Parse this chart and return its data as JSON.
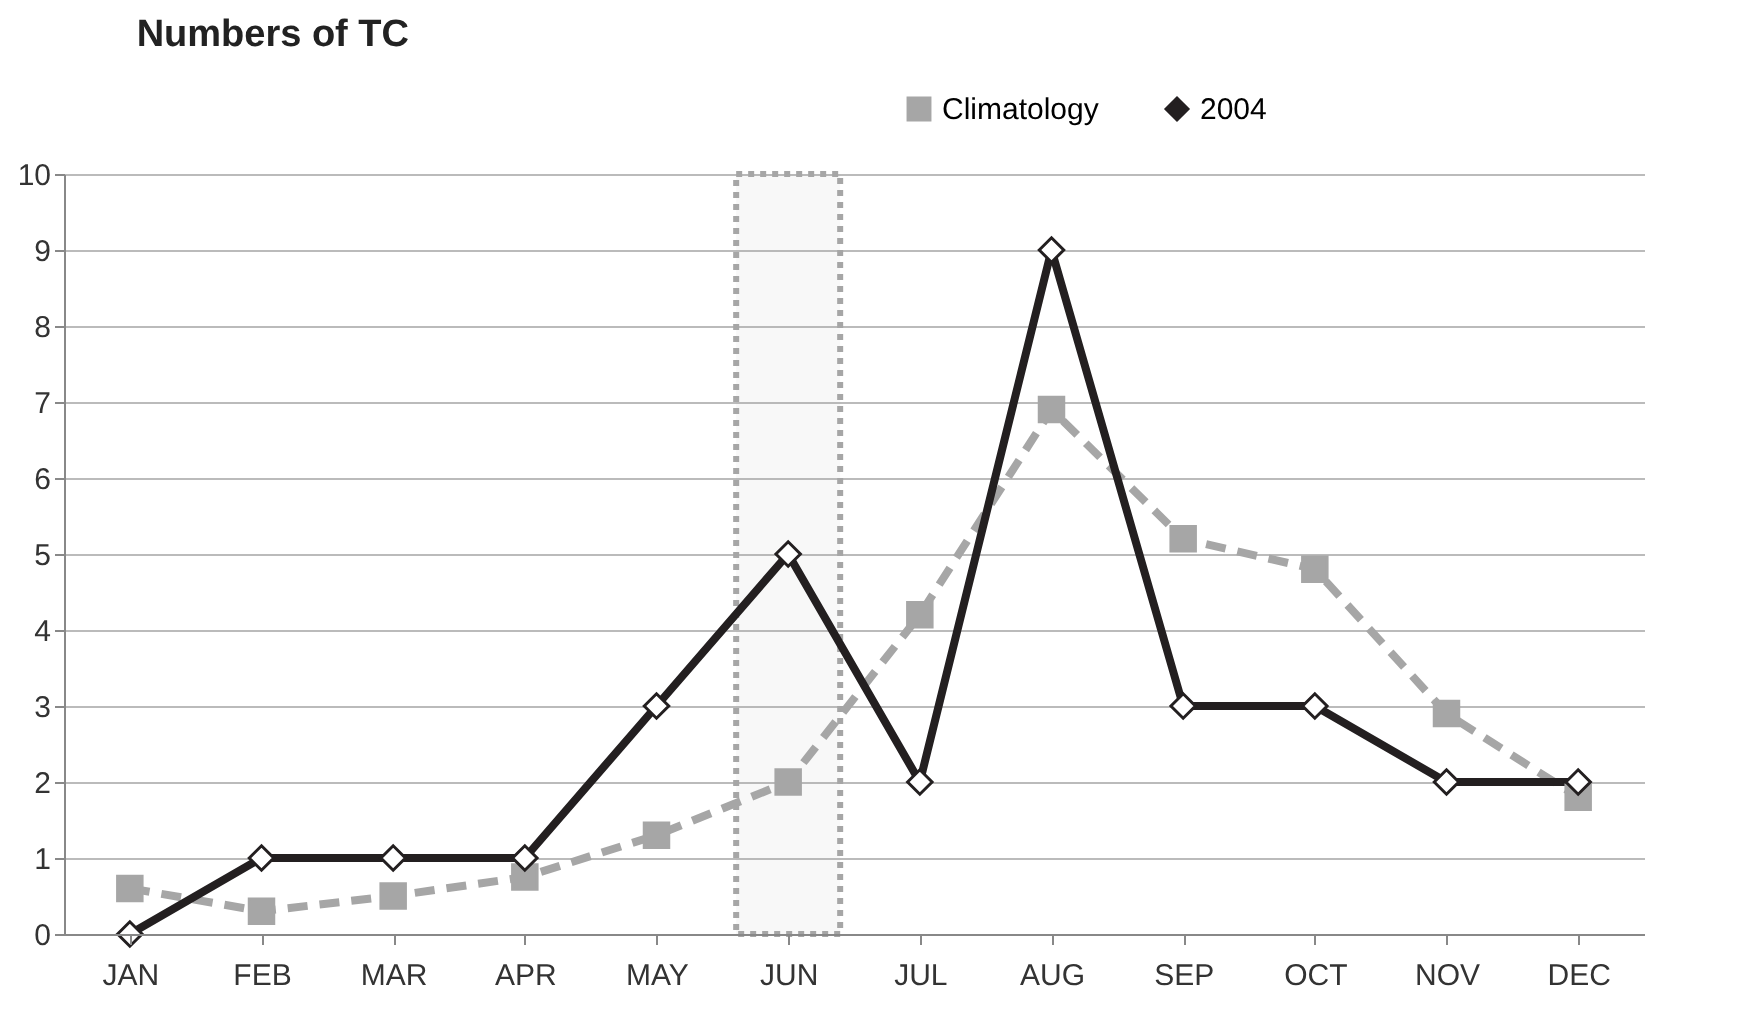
{
  "chart_data": {
    "type": "line",
    "title": "Numbers of TC",
    "categories": [
      "JAN",
      "FEB",
      "MAR",
      "APR",
      "MAY",
      "JUN",
      "JUL",
      "AUG",
      "SEP",
      "OCT",
      "NOV",
      "DEC"
    ],
    "series": [
      {
        "name": "Climatology",
        "color": "#a6a6a6",
        "marker": "square",
        "line_style": "dashed",
        "values": [
          0.6,
          0.3,
          0.5,
          0.75,
          1.3,
          2.0,
          4.2,
          6.9,
          5.2,
          4.8,
          2.9,
          1.8
        ]
      },
      {
        "name": "2004",
        "color": "#231f20",
        "marker": "diamond",
        "line_style": "solid",
        "values": [
          0,
          1,
          1,
          1,
          3,
          5,
          2,
          9,
          3,
          3,
          2,
          2
        ]
      }
    ],
    "ylim": [
      0,
      10
    ],
    "yticks": [
      0,
      1,
      2,
      3,
      4,
      5,
      6,
      7,
      8,
      9,
      10
    ],
    "grid": "y",
    "legend": "top right",
    "bands": [
      {
        "axis": "x",
        "from": "JUN",
        "to": "JUN",
        "color": "#a6a6a6"
      }
    ]
  }
}
